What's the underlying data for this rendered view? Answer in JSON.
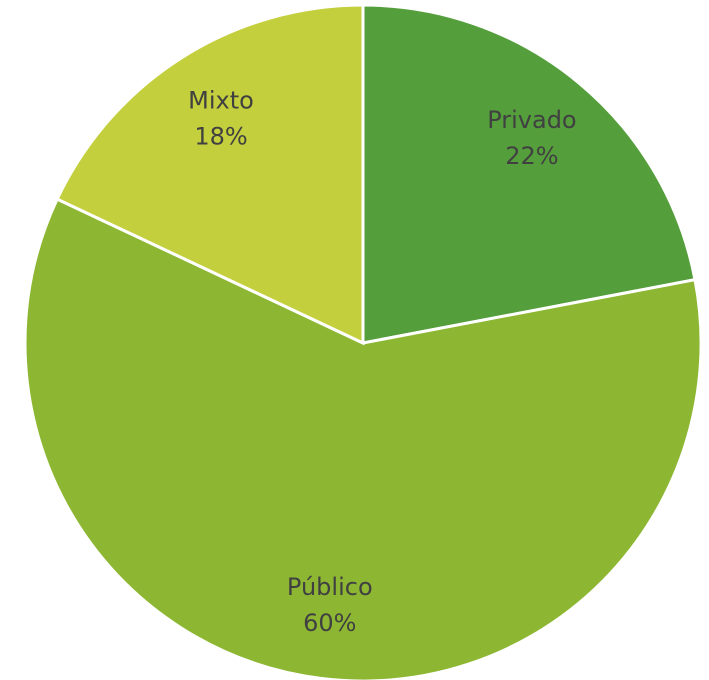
{
  "chart_data": {
    "type": "pie",
    "categories": [
      "Privado",
      "Público",
      "Mixto"
    ],
    "values": [
      22,
      60,
      18
    ],
    "value_labels": [
      "22%",
      "60%",
      "18%"
    ],
    "colors": [
      "#559e3c",
      "#8db733",
      "#c3cf3c"
    ]
  }
}
